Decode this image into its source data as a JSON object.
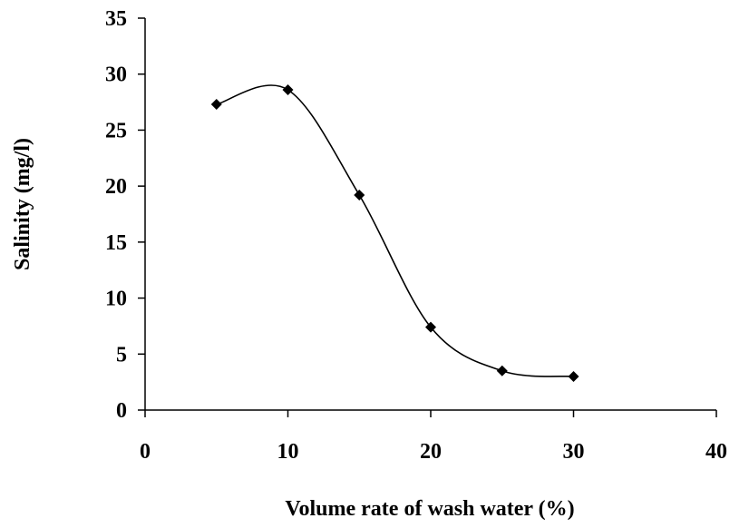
{
  "chart_data": {
    "type": "line",
    "title": "",
    "xlabel": "Volume rate of wash water (%)",
    "ylabel": "Salinity (mg/l)",
    "xlim": [
      0,
      40
    ],
    "ylim": [
      0,
      35
    ],
    "xticks": [
      0,
      10,
      20,
      30,
      40
    ],
    "yticks": [
      0,
      5,
      10,
      15,
      20,
      25,
      30,
      35
    ],
    "grid": false,
    "legend": "none",
    "smooth": true,
    "marker": "diamond",
    "line_color": "#000000",
    "series": [
      {
        "x": [
          5,
          10,
          15,
          20,
          25,
          30
        ],
        "values": [
          27.3,
          28.6,
          19.2,
          7.4,
          3.5,
          3.0
        ]
      }
    ]
  }
}
